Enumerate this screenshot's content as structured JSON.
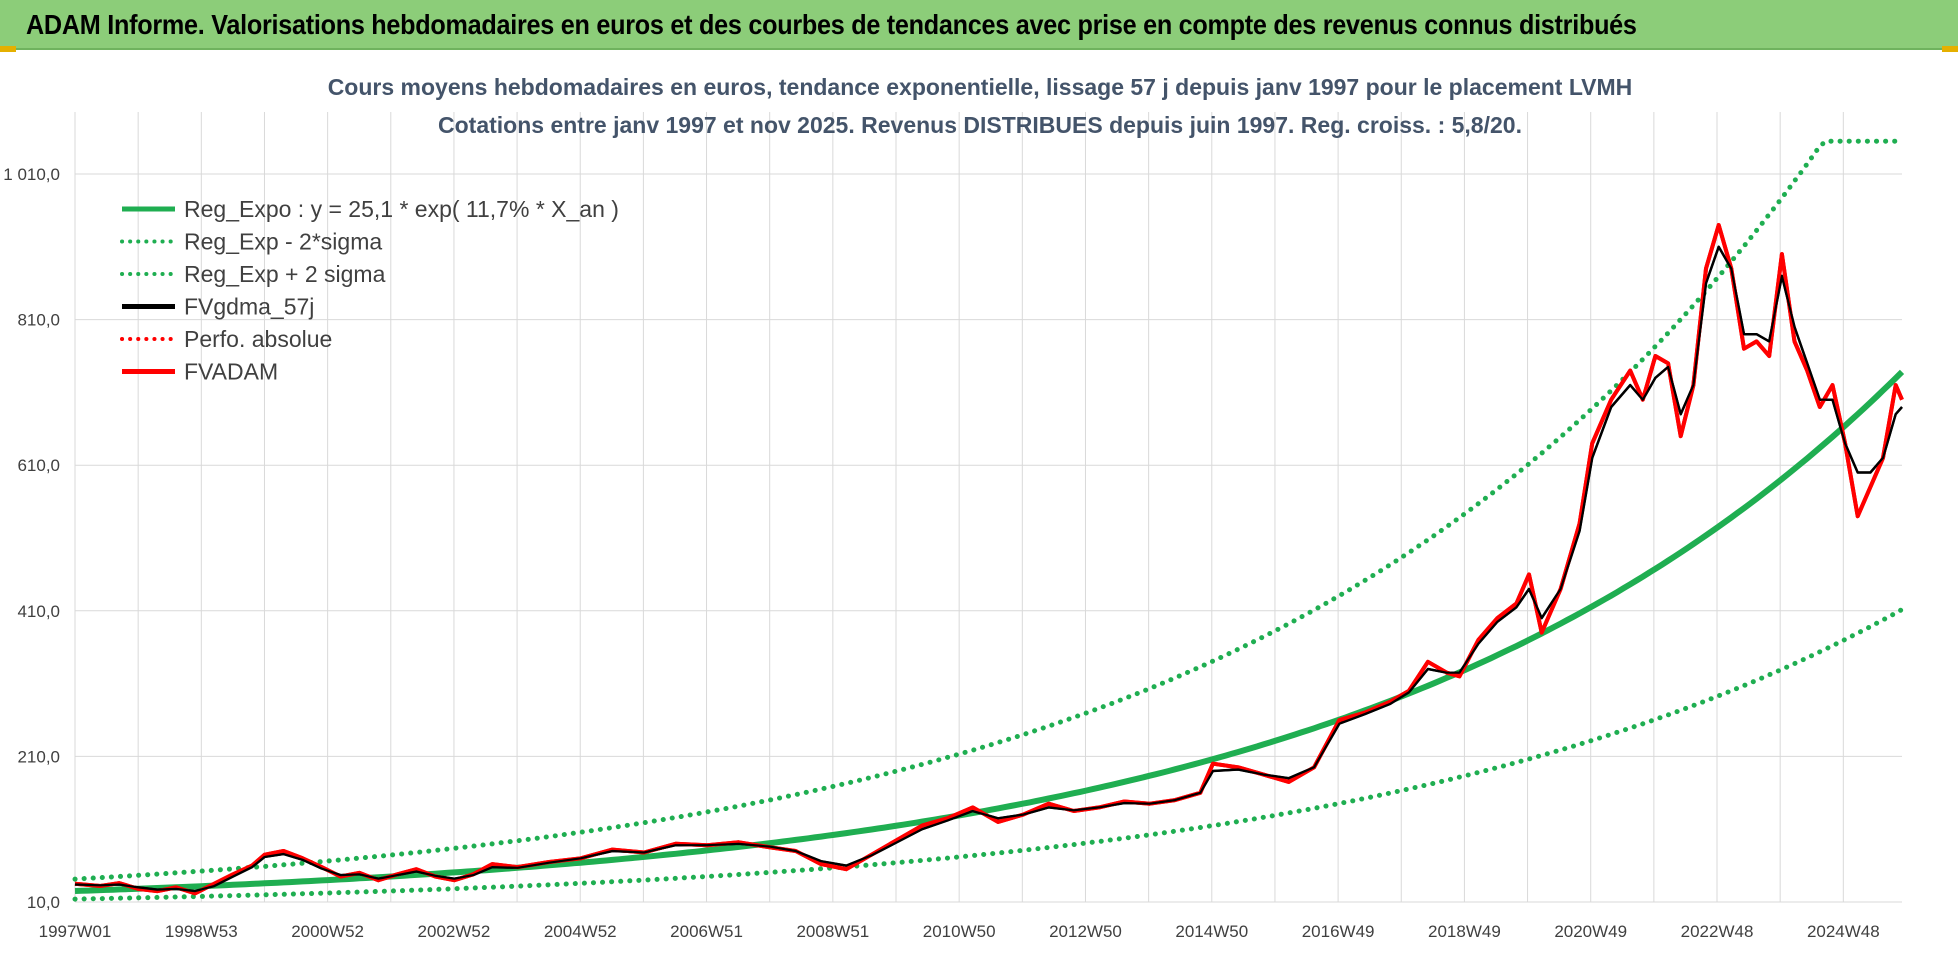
{
  "header": {
    "title": "ADAM Informe. Valorisations hebdomadaires en euros et des courbes de tendances avec prise en compte des revenus connus distribués"
  },
  "colors": {
    "header_bg": "#8ccd79",
    "trend_green": "#1fae51",
    "smooth_black": "#000000",
    "fvadam_red": "#ff0000",
    "grid": "#d9d9d9"
  },
  "chart_data": {
    "type": "line",
    "title": [
      "Cours moyens hebdomadaires en euros, tendance exponentielle, lissage 57 j depuis janv 1997 pour le placement LVMH",
      "Cotations entre janv 1997 et nov 2025. Revenus DISTRIBUES depuis juin 1997. Reg. croiss. : 5,8/20."
    ],
    "x_labels": [
      "1997W01",
      "1998W53",
      "2000W52",
      "2002W52",
      "2004W52",
      "2006W51",
      "2008W51",
      "2010W50",
      "2012W50",
      "2014W50",
      "2016W49",
      "2018W49",
      "2020W49",
      "2022W48",
      "2024W48"
    ],
    "xlim": [
      1997.0,
      2025.9
    ],
    "y_ticks": [
      "10,0",
      "210,0",
      "410,0",
      "610,0",
      "810,0",
      "1 010,0"
    ],
    "ylim": [
      10,
      1010
    ],
    "grid": true,
    "legend_position": "top-left",
    "legend": [
      {
        "label": "Reg_Expo : y = 25,1 * exp( 11,7% *  X_an )",
        "color": "#1fae51",
        "style": "solid"
      },
      {
        "label": "Reg_Exp - 2*sigma",
        "color": "#1fae51",
        "style": "dotted"
      },
      {
        "label": "Reg_Exp + 2 sigma",
        "color": "#1fae51",
        "style": "dotted"
      },
      {
        "label": "FVgdma_57j",
        "color": "#000000",
        "style": "solid"
      },
      {
        "label": "Perfo. absolue",
        "color": "#ff0000",
        "style": "dotted"
      },
      {
        "label": "FVADAM",
        "color": "#ff0000",
        "style": "solid"
      }
    ],
    "series": [
      {
        "name": "FVADAM",
        "x": [
          1997.0,
          1997.4,
          1997.7,
          1998.0,
          1998.3,
          1998.6,
          1998.9,
          1999.2,
          1999.5,
          1999.8,
          2000.0,
          2000.3,
          2000.6,
          2000.9,
          2001.2,
          2001.5,
          2001.8,
          2002.1,
          2002.4,
          2002.7,
          2003.0,
          2003.3,
          2003.6,
          2004.0,
          2004.5,
          2005.0,
          2005.5,
          2006.0,
          2006.5,
          2007.0,
          2007.5,
          2008.0,
          2008.4,
          2008.8,
          2009.2,
          2009.6,
          2010.0,
          2010.4,
          2010.8,
          2011.2,
          2011.6,
          2012.0,
          2012.4,
          2012.8,
          2013.2,
          2013.6,
          2014.0,
          2014.4,
          2014.8,
          2015.0,
          2015.4,
          2015.8,
          2016.2,
          2016.6,
          2017.0,
          2017.4,
          2017.8,
          2018.1,
          2018.4,
          2018.7,
          2018.9,
          2019.2,
          2019.5,
          2019.8,
          2020.0,
          2020.2,
          2020.5,
          2020.8,
          2021.0,
          2021.3,
          2021.6,
          2021.8,
          2022.0,
          2022.2,
          2022.4,
          2022.6,
          2022.8,
          2023.0,
          2023.2,
          2023.4,
          2023.6,
          2023.8,
          2024.0,
          2024.2,
          2024.4,
          2024.6,
          2024.8,
          2025.0,
          2025.2,
          2025.4,
          2025.6,
          2025.8,
          2025.9
        ],
        "y": [
          35,
          32,
          36,
          28,
          25,
          30,
          22,
          35,
          48,
          60,
          75,
          80,
          70,
          58,
          45,
          50,
          40,
          48,
          55,
          45,
          40,
          48,
          62,
          58,
          65,
          70,
          82,
          78,
          90,
          88,
          92,
          85,
          80,
          62,
          55,
          75,
          95,
          115,
          125,
          140,
          120,
          130,
          145,
          135,
          140,
          148,
          145,
          150,
          160,
          200,
          195,
          185,
          175,
          195,
          260,
          270,
          285,
          300,
          340,
          325,
          320,
          370,
          400,
          420,
          460,
          380,
          440,
          530,
          640,
          700,
          740,
          700,
          760,
          750,
          650,
          720,
          880,
          940,
          880,
          770,
          780,
          760,
          900,
          780,
          740,
          690,
          720,
          640,
          540,
          580,
          620,
          720,
          700
        ]
      },
      {
        "name": "FVgdma_57j",
        "x": [
          1997.0,
          1997.4,
          1997.7,
          1998.0,
          1998.3,
          1998.6,
          1998.9,
          1999.2,
          1999.5,
          1999.8,
          2000.0,
          2000.3,
          2000.6,
          2000.9,
          2001.2,
          2001.5,
          2001.8,
          2002.1,
          2002.4,
          2002.7,
          2003.0,
          2003.3,
          2003.6,
          2004.0,
          2004.5,
          2005.0,
          2005.5,
          2006.0,
          2006.5,
          2007.0,
          2007.5,
          2008.0,
          2008.4,
          2008.8,
          2009.2,
          2009.6,
          2010.0,
          2010.4,
          2010.8,
          2011.2,
          2011.6,
          2012.0,
          2012.4,
          2012.8,
          2013.2,
          2013.6,
          2014.0,
          2014.4,
          2014.8,
          2015.0,
          2015.4,
          2015.8,
          2016.2,
          2016.6,
          2017.0,
          2017.4,
          2017.8,
          2018.1,
          2018.4,
          2018.7,
          2018.9,
          2019.2,
          2019.5,
          2019.8,
          2020.0,
          2020.2,
          2020.5,
          2020.8,
          2021.0,
          2021.3,
          2021.6,
          2021.8,
          2022.0,
          2022.2,
          2022.4,
          2022.6,
          2022.8,
          2023.0,
          2023.2,
          2023.4,
          2023.6,
          2023.8,
          2024.0,
          2024.2,
          2024.4,
          2024.6,
          2024.8,
          2025.0,
          2025.2,
          2025.4,
          2025.6,
          2025.8,
          2025.9
        ],
        "y": [
          34,
          33,
          34,
          30,
          27,
          28,
          25,
          32,
          45,
          58,
          72,
          76,
          68,
          56,
          47,
          48,
          42,
          47,
          52,
          46,
          42,
          47,
          58,
          57,
          64,
          70,
          80,
          78,
          88,
          88,
          90,
          86,
          80,
          66,
          60,
          74,
          92,
          110,
          122,
          135,
          125,
          130,
          140,
          136,
          140,
          146,
          145,
          150,
          160,
          190,
          192,
          185,
          180,
          195,
          255,
          268,
          282,
          298,
          330,
          325,
          325,
          365,
          395,
          415,
          440,
          400,
          440,
          520,
          620,
          690,
          720,
          700,
          730,
          745,
          680,
          720,
          860,
          910,
          880,
          790,
          790,
          780,
          870,
          800,
          750,
          700,
          700,
          640,
          600,
          600,
          620,
          680,
          690
        ]
      },
      {
        "name": "Reg_Expo : y = 25,1 * exp( 11,7% *  X_an )",
        "formula": {
          "a": 25.1,
          "rate": 0.117
        }
      },
      {
        "name": "Reg_Exp - 2*sigma",
        "formula": {
          "a": 14.0,
          "rate": 0.117
        }
      },
      {
        "name": "Reg_Exp + 2 sigma",
        "formula": {
          "a": 41.5,
          "rate": 0.117
        },
        "cap": 1055
      }
    ]
  }
}
